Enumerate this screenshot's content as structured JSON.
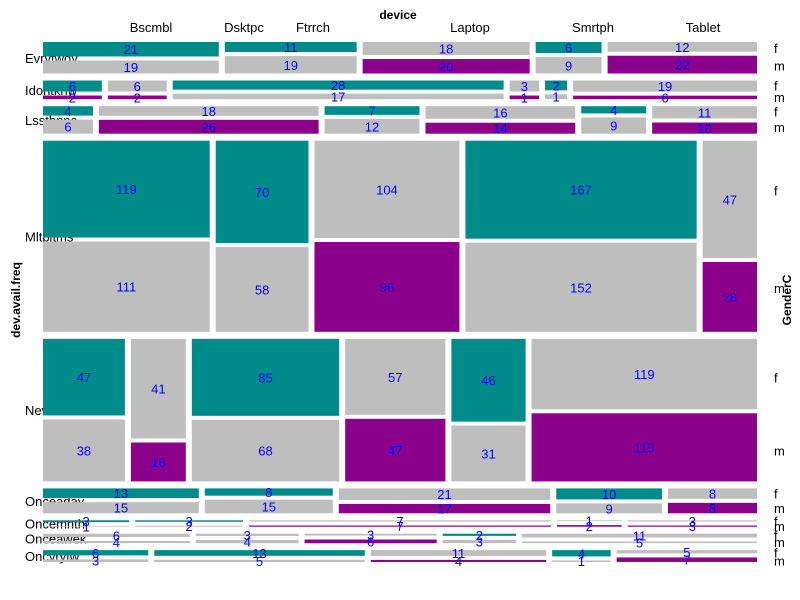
{
  "chart_data": {
    "type": "mosaic",
    "title": "",
    "xlabel": "device",
    "ylabel": "dev.avail.freq",
    "zlabel": "GenderC",
    "columns": [
      "Bscmbl",
      "Dsktpc",
      "Ftrrch",
      "Laptop",
      "Smrtph",
      "Tablet"
    ],
    "rows": [
      "Evryfwdy",
      "Idontknw",
      "Lssthnnc",
      "Mltpltms",
      "Never",
      "Onceaday",
      "Oncemnth",
      "Onceawek",
      "Oncvryfw"
    ],
    "sexes": [
      "f",
      "m"
    ],
    "counts": [
      [
        [
          21,
          19
        ],
        [
          11,
          19
        ],
        [
          0,
          0
        ],
        [
          18,
          20
        ],
        [
          6,
          9
        ],
        [
          12,
          22
        ]
      ],
      [
        [
          6,
          2
        ],
        [
          6,
          2
        ],
        [
          28,
          17
        ],
        [
          3,
          1
        ],
        [
          2,
          1
        ],
        [
          19,
          6
        ]
      ],
      [
        [
          4,
          6
        ],
        [
          18,
          26
        ],
        [
          7,
          12
        ],
        [
          16,
          14
        ],
        [
          4,
          9
        ],
        [
          11,
          10
        ]
      ],
      [
        [
          119,
          111
        ],
        [
          70,
          58
        ],
        [
          104,
          96
        ],
        [
          167,
          152
        ],
        [
          47,
          28
        ],
        [
          0,
          0
        ]
      ],
      [
        [
          47,
          38
        ],
        [
          41,
          16
        ],
        [
          85,
          68
        ],
        [
          57,
          47
        ],
        [
          46,
          31
        ],
        [
          119,
          115
        ]
      ],
      [
        [
          13,
          15
        ],
        [
          8,
          15
        ],
        [
          21,
          17
        ],
        [
          10,
          9
        ],
        [
          8,
          8
        ],
        [
          0,
          0
        ]
      ],
      [
        [
          3,
          1
        ],
        [
          3,
          2
        ],
        [
          7,
          7
        ],
        [
          1,
          2
        ],
        [
          3,
          3
        ],
        [
          0,
          0
        ]
      ],
      [
        [
          6,
          4
        ],
        [
          3,
          4
        ],
        [
          3,
          6
        ],
        [
          2,
          3
        ],
        [
          11,
          5
        ],
        [
          0,
          0
        ]
      ],
      [
        [
          6,
          3
        ],
        [
          13,
          5
        ],
        [
          11,
          4
        ],
        [
          4,
          1
        ],
        [
          5,
          7
        ],
        [
          0,
          0
        ]
      ]
    ],
    "palette": {
      "f_positive": "#008b8b",
      "m_positive": "#8b008b",
      "neutral": "#bebebe",
      "cell_text": "#0000ff",
      "background": "#ffffff"
    }
  },
  "layout_rows": [
    {
      "cells": [
        [
          21,
          19,
          "hi",
          "gr"
        ],
        [
          11,
          19,
          "hi",
          "gr"
        ],
        [
          18,
          20,
          "gr",
          "lo"
        ],
        [
          6,
          9,
          "hi",
          "gr"
        ],
        [
          12,
          22,
          "gr",
          "lo"
        ]
      ]
    },
    {
      "cells": [
        [
          6,
          2,
          "hi",
          "lo"
        ],
        [
          6,
          2,
          "gr",
          "lo"
        ],
        [
          28,
          17,
          "hi",
          "gr"
        ],
        [
          3,
          1,
          "gr",
          "lo"
        ],
        [
          2,
          1,
          "hi",
          "gr"
        ],
        [
          19,
          6,
          "gr",
          "lo"
        ]
      ]
    },
    {
      "cells": [
        [
          4,
          6,
          "hi",
          "gr"
        ],
        [
          18,
          26,
          "gr",
          "lo"
        ],
        [
          7,
          12,
          "hi",
          "gr"
        ],
        [
          16,
          14,
          "gr",
          "lo"
        ],
        [
          4,
          9,
          "hi",
          "gr"
        ],
        [
          11,
          10,
          "gr",
          "lo"
        ]
      ]
    },
    {
      "cells": [
        [
          119,
          111,
          "hi",
          "gr"
        ],
        [
          70,
          58,
          "hi",
          "gr"
        ],
        [
          104,
          96,
          "gr",
          "lo"
        ],
        [
          167,
          152,
          "hi",
          "gr"
        ],
        [
          47,
          28,
          "gr",
          "lo"
        ]
      ]
    },
    {
      "cells": [
        [
          47,
          38,
          "hi",
          "gr"
        ],
        [
          41,
          16,
          "gr",
          "lo"
        ],
        [
          85,
          68,
          "hi",
          "gr"
        ],
        [
          57,
          47,
          "gr",
          "lo"
        ],
        [
          46,
          31,
          "hi",
          "gr"
        ],
        [
          119,
          115,
          "gr",
          "lo"
        ]
      ]
    },
    {
      "cells": [
        [
          13,
          15,
          "hi",
          "gr"
        ],
        [
          8,
          15,
          "hi",
          "gr"
        ],
        [
          21,
          17,
          "gr",
          "lo"
        ],
        [
          10,
          9,
          "hi",
          "gr"
        ],
        [
          8,
          8,
          "gr",
          "lo"
        ]
      ]
    },
    {
      "cells": [
        [
          3,
          1,
          "hi",
          "gr"
        ],
        [
          3,
          2,
          "hi",
          "gr"
        ],
        [
          7,
          7,
          "gr",
          "lo"
        ],
        [
          1,
          2,
          "gr",
          "lo"
        ],
        [
          3,
          3,
          "gr",
          "lo"
        ]
      ]
    },
    {
      "cells": [
        [
          6,
          4,
          "gr",
          "gr"
        ],
        [
          3,
          4,
          "gr",
          "gr"
        ],
        [
          3,
          6,
          "gr",
          "lo"
        ],
        [
          2,
          3,
          "hi",
          "gr"
        ],
        [
          11,
          5,
          "gr",
          "gr"
        ]
      ]
    },
    {
      "cells": [
        [
          6,
          3,
          "hi",
          "gr"
        ],
        [
          13,
          5,
          "hi",
          "gr"
        ],
        [
          11,
          4,
          "gr",
          "lo"
        ],
        [
          4,
          1,
          "hi",
          "gr"
        ],
        [
          5,
          7,
          "gr",
          "lo"
        ]
      ]
    }
  ]
}
